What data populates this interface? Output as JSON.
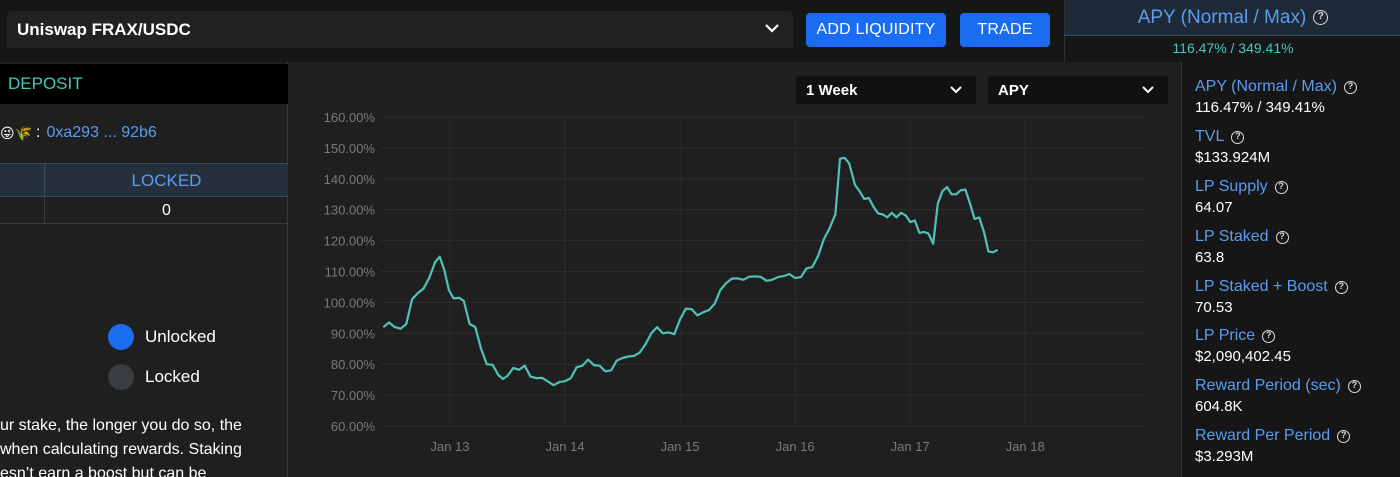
{
  "topbar": {
    "pool_name": "Uniswap FRAX/USDC",
    "add_liquidity_label": "ADD LIQUIDITY",
    "trade_label": "TRADE"
  },
  "apy_top": {
    "label": "APY (Normal / Max)",
    "value": "116.47% / 349.41%"
  },
  "left": {
    "deposit_title": "DEPOSIT",
    "emoji": "😜🌾",
    "colon": ":",
    "address": "0xa293 ... 92b6",
    "table": {
      "column_locked": "LOCKED",
      "locked_value": "0"
    },
    "legend": [
      {
        "label": "Unlocked",
        "color": "#1a6cf0"
      },
      {
        "label": "Locked",
        "color": "#3a3d42"
      }
    ],
    "description_lines": [
      "ur stake, the longer you do so, the",
      " when calculating rewards. Staking",
      "esn’t earn a boost but can be"
    ]
  },
  "chart_controls": {
    "range": "1 Week",
    "metric": "APY"
  },
  "chart_data": {
    "type": "line",
    "title": "",
    "xlabel": "",
    "ylabel": "",
    "ylim": [
      60,
      160
    ],
    "yticks": [
      "60.00%",
      "70.00%",
      "80.00%",
      "90.00%",
      "100.00%",
      "110.00%",
      "120.00%",
      "130.00%",
      "140.00%",
      "150.00%",
      "160.00%"
    ],
    "xticks": [
      {
        "label": "Jan 13",
        "x": 13.0
      },
      {
        "label": "Jan 14",
        "x": 14.0
      },
      {
        "label": "Jan 15",
        "x": 15.0
      },
      {
        "label": "Jan 16",
        "x": 16.0
      },
      {
        "label": "Jan 17",
        "x": 17.0
      },
      {
        "label": "Jan 18",
        "x": 18.0
      }
    ],
    "xlim": [
      12.4,
      19.05
    ],
    "grid": true,
    "series": [
      {
        "color": "#4ec3b6",
        "points": [
          [
            12.42,
            92
          ],
          [
            12.47,
            93.5
          ],
          [
            12.52,
            92
          ],
          [
            12.57,
            91.5
          ],
          [
            12.62,
            93
          ],
          [
            12.67,
            101
          ],
          [
            12.72,
            103
          ],
          [
            12.77,
            104.5
          ],
          [
            12.82,
            108
          ],
          [
            12.87,
            113
          ],
          [
            12.91,
            114.8
          ],
          [
            12.95,
            110.5
          ],
          [
            12.99,
            104
          ],
          [
            13.03,
            101.3
          ],
          [
            13.08,
            101.5
          ],
          [
            13.12,
            100.5
          ],
          [
            13.17,
            93
          ],
          [
            13.22,
            92
          ],
          [
            13.27,
            85
          ],
          [
            13.32,
            80
          ],
          [
            13.37,
            79.8
          ],
          [
            13.42,
            76.5
          ],
          [
            13.46,
            75.2
          ],
          [
            13.5,
            76.2
          ],
          [
            13.55,
            78.8
          ],
          [
            13.6,
            78.2
          ],
          [
            13.65,
            79.5
          ],
          [
            13.7,
            76
          ],
          [
            13.75,
            75.5
          ],
          [
            13.8,
            75.6
          ],
          [
            13.85,
            74.4
          ],
          [
            13.9,
            73.2
          ],
          [
            13.95,
            74.2
          ],
          [
            14.0,
            74.5
          ],
          [
            14.05,
            75.5
          ],
          [
            14.1,
            79
          ],
          [
            14.15,
            79.5
          ],
          [
            14.2,
            81.5
          ],
          [
            14.25,
            79.7
          ],
          [
            14.3,
            79.5
          ],
          [
            14.35,
            77.7
          ],
          [
            14.4,
            78
          ],
          [
            14.45,
            81.2
          ],
          [
            14.5,
            82
          ],
          [
            14.55,
            82.5
          ],
          [
            14.6,
            82.7
          ],
          [
            14.65,
            83.8
          ],
          [
            14.7,
            86.5
          ],
          [
            14.75,
            90
          ],
          [
            14.8,
            92
          ],
          [
            14.85,
            90
          ],
          [
            14.9,
            90.3
          ],
          [
            14.95,
            89.7
          ],
          [
            15.0,
            94.5
          ],
          [
            15.05,
            98
          ],
          [
            15.1,
            97.8
          ],
          [
            15.15,
            95.8
          ],
          [
            15.2,
            96.8
          ],
          [
            15.25,
            97.5
          ],
          [
            15.3,
            99.5
          ],
          [
            15.35,
            104
          ],
          [
            15.4,
            106.2
          ],
          [
            15.45,
            107.7
          ],
          [
            15.5,
            107.8
          ],
          [
            15.55,
            107.3
          ],
          [
            15.6,
            108.3
          ],
          [
            15.65,
            108.4
          ],
          [
            15.7,
            108.3
          ],
          [
            15.75,
            107
          ],
          [
            15.8,
            107.3
          ],
          [
            15.85,
            108.2
          ],
          [
            15.9,
            108.5
          ],
          [
            15.95,
            109.2
          ],
          [
            16.0,
            107.9
          ],
          [
            16.05,
            108.2
          ],
          [
            16.1,
            111
          ],
          [
            16.15,
            111.5
          ],
          [
            16.2,
            115
          ],
          [
            16.25,
            120.5
          ],
          [
            16.3,
            124
          ],
          [
            16.35,
            128.5
          ],
          [
            16.39,
            146.5
          ],
          [
            16.43,
            146.8
          ],
          [
            16.47,
            145
          ],
          [
            16.52,
            138
          ],
          [
            16.56,
            136
          ],
          [
            16.6,
            133.5
          ],
          [
            16.64,
            133.8
          ],
          [
            16.68,
            131
          ],
          [
            16.72,
            128.8
          ],
          [
            16.76,
            128.5
          ],
          [
            16.8,
            127.5
          ],
          [
            16.84,
            129
          ],
          [
            16.88,
            127.5
          ],
          [
            16.92,
            129
          ],
          [
            16.96,
            128.2
          ],
          [
            17.0,
            126
          ],
          [
            17.04,
            126.5
          ],
          [
            17.08,
            122.5
          ],
          [
            17.12,
            122.8
          ],
          [
            17.16,
            122.2
          ],
          [
            17.2,
            119
          ],
          [
            17.24,
            132
          ],
          [
            17.28,
            136
          ],
          [
            17.32,
            137.3
          ],
          [
            17.36,
            135
          ],
          [
            17.4,
            135
          ],
          [
            17.44,
            136.3
          ],
          [
            17.48,
            136.5
          ],
          [
            17.52,
            132
          ],
          [
            17.56,
            127
          ],
          [
            17.6,
            127.5
          ],
          [
            17.64,
            123
          ],
          [
            17.68,
            116.5
          ],
          [
            17.72,
            116.2
          ],
          [
            17.76,
            117
          ]
        ]
      }
    ]
  },
  "stats": [
    {
      "label": "APY (Normal / Max)",
      "value": "116.47% / 349.41%"
    },
    {
      "label": "TVL",
      "value": "$133.924M"
    },
    {
      "label": "LP Supply",
      "value": "64.07"
    },
    {
      "label": "LP Staked",
      "value": "63.8"
    },
    {
      "label": "LP Staked + Boost",
      "value": "70.53"
    },
    {
      "label": "LP Price",
      "value": "$2,090,402.45"
    },
    {
      "label": "Reward Period (sec)",
      "value": "604.8K"
    },
    {
      "label": "Reward Per Period",
      "value": "$3.293M"
    }
  ]
}
